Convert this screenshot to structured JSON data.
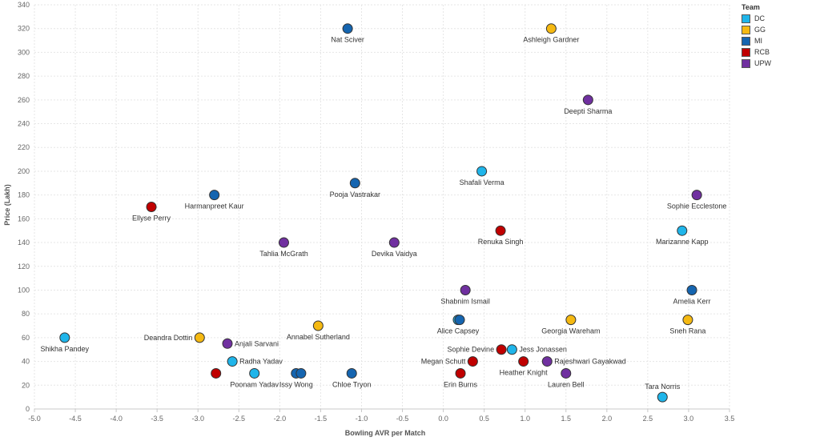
{
  "chart_data": {
    "type": "scatter",
    "xlabel": "Bowling AVR per Match",
    "ylabel": "Price (Lakh)",
    "xlim": [
      -5.0,
      3.5
    ],
    "ylim": [
      0,
      340
    ],
    "x_ticks": [
      "-5.0",
      "-4.5",
      "-4.0",
      "-3.5",
      "-3.0",
      "-2.5",
      "-2.0",
      "-1.5",
      "-1.0",
      "-0.5",
      "0.0",
      "0.5",
      "1.0",
      "1.5",
      "2.0",
      "2.5",
      "3.0",
      "3.5"
    ],
    "y_ticks": [
      "0",
      "20",
      "40",
      "60",
      "80",
      "100",
      "120",
      "140",
      "160",
      "180",
      "200",
      "220",
      "240",
      "260",
      "280",
      "300",
      "320",
      "340"
    ],
    "grid": true,
    "legend": {
      "title": "Team",
      "position": "top-right",
      "items": [
        {
          "name": "DC",
          "color": "#1fb5ea"
        },
        {
          "name": "GG",
          "color": "#f5b912"
        },
        {
          "name": "MI",
          "color": "#1565b0"
        },
        {
          "name": "RCB",
          "color": "#c00000"
        },
        {
          "name": "UPW",
          "color": "#7030a0"
        }
      ]
    },
    "points": [
      {
        "label": "Nat Sciver",
        "team": "MI",
        "x": -1.17,
        "y": 320,
        "label_pos": "below"
      },
      {
        "label": "Ashleigh Gardner",
        "team": "GG",
        "x": 1.32,
        "y": 320,
        "label_pos": "below"
      },
      {
        "label": "Deepti Sharma",
        "team": "UPW",
        "x": 1.77,
        "y": 260,
        "label_pos": "below"
      },
      {
        "label": "Shafali Verma",
        "team": "DC",
        "x": 0.47,
        "y": 200,
        "label_pos": "below"
      },
      {
        "label": "Pooja Vastrakar",
        "team": "MI",
        "x": -1.08,
        "y": 190,
        "label_pos": "below"
      },
      {
        "label": "Harmanpreet Kaur",
        "team": "MI",
        "x": -2.8,
        "y": 180,
        "label_pos": "below"
      },
      {
        "label": "Sophie Ecclestone",
        "team": "UPW",
        "x": 3.1,
        "y": 180,
        "label_pos": "below"
      },
      {
        "label": "Ellyse Perry",
        "team": "RCB",
        "x": -3.57,
        "y": 170,
        "label_pos": "below"
      },
      {
        "label": "Renuka Singh",
        "team": "RCB",
        "x": 0.7,
        "y": 150,
        "label_pos": "below"
      },
      {
        "label": "Marizanne Kapp",
        "team": "DC",
        "x": 2.92,
        "y": 150,
        "label_pos": "below"
      },
      {
        "label": "Tahlia McGrath",
        "team": "UPW",
        "x": -1.95,
        "y": 140,
        "label_pos": "below"
      },
      {
        "label": "Devika Vaidya",
        "team": "UPW",
        "x": -0.6,
        "y": 140,
        "label_pos": "below"
      },
      {
        "label": "Shabnim Ismail",
        "team": "UPW",
        "x": 0.27,
        "y": 100,
        "label_pos": "below"
      },
      {
        "label": "Amelia Kerr",
        "team": "MI",
        "x": 3.04,
        "y": 100,
        "label_pos": "below"
      },
      {
        "label": "Alice Capsey",
        "team": "DC",
        "x": 0.18,
        "y": 75,
        "label_pos": "below"
      },
      {
        "label": "",
        "team": "MI",
        "x": 0.2,
        "y": 75,
        "label_pos": "none"
      },
      {
        "label": "Georgia Wareham",
        "team": "GG",
        "x": 1.56,
        "y": 75,
        "label_pos": "below"
      },
      {
        "label": "Sneh Rana",
        "team": "GG",
        "x": 2.99,
        "y": 75,
        "label_pos": "below"
      },
      {
        "label": "Annabel Sutherland",
        "team": "GG",
        "x": -1.53,
        "y": 70,
        "label_pos": "below"
      },
      {
        "label": "Shikha Pandey",
        "team": "DC",
        "x": -4.63,
        "y": 60,
        "label_pos": "below"
      },
      {
        "label": "Deandra Dottin",
        "team": "GG",
        "x": -2.98,
        "y": 60,
        "label_pos": "left"
      },
      {
        "label": "Anjali Sarvani",
        "team": "UPW",
        "x": -2.64,
        "y": 55,
        "label_pos": "right"
      },
      {
        "label": "Sophie Devine",
        "team": "RCB",
        "x": 0.71,
        "y": 50,
        "label_pos": "left"
      },
      {
        "label": "Jess Jonassen",
        "team": "DC",
        "x": 0.84,
        "y": 50,
        "label_pos": "right"
      },
      {
        "label": "Radha Yadav",
        "team": "DC",
        "x": -2.58,
        "y": 40,
        "label_pos": "right"
      },
      {
        "label": "Megan Schutt",
        "team": "RCB",
        "x": 0.36,
        "y": 40,
        "label_pos": "left"
      },
      {
        "label": "Heather Knight",
        "team": "RCB",
        "x": 0.98,
        "y": 40,
        "label_pos": "below"
      },
      {
        "label": "Rajeshwari Gayakwad",
        "team": "UPW",
        "x": 1.27,
        "y": 40,
        "label_pos": "right"
      },
      {
        "label": "",
        "team": "RCB",
        "x": -2.78,
        "y": 30,
        "label_pos": "none"
      },
      {
        "label": "Poonam Yadav",
        "team": "DC",
        "x": -2.31,
        "y": 30,
        "label_pos": "below"
      },
      {
        "label": "Issy Wong",
        "team": "MI",
        "x": -1.8,
        "y": 30,
        "label_pos": "below"
      },
      {
        "label": "",
        "team": "MI",
        "x": -1.74,
        "y": 30,
        "label_pos": "none"
      },
      {
        "label": "Chloe Tryon",
        "team": "MI",
        "x": -1.12,
        "y": 30,
        "label_pos": "below"
      },
      {
        "label": "Erin Burns",
        "team": "RCB",
        "x": 0.21,
        "y": 30,
        "label_pos": "below"
      },
      {
        "label": "Lauren Bell",
        "team": "UPW",
        "x": 1.5,
        "y": 30,
        "label_pos": "below"
      },
      {
        "label": "Tara Norris",
        "team": "DC",
        "x": 2.68,
        "y": 10,
        "label_pos": "above"
      }
    ]
  }
}
